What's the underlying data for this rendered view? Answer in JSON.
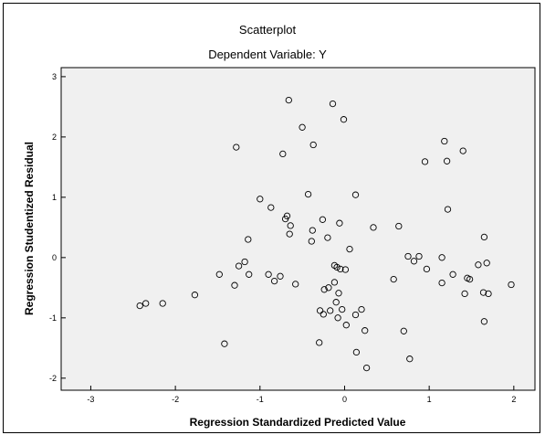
{
  "chart_data": {
    "type": "scatter",
    "title": "Scatterplot",
    "subtitle": "Dependent Variable: Y",
    "xlabel": "Regression Standardized Predicted Value",
    "ylabel": "Regression Studentized Residual",
    "xlim": [
      -3.35,
      2.25
    ],
    "ylim": [
      -2.2,
      3.15
    ],
    "xticks": [
      -3,
      -2,
      -1,
      0,
      1,
      2
    ],
    "yticks": [
      -2,
      -1,
      0,
      1,
      2,
      3
    ],
    "grid": false,
    "legend": "none",
    "colors": {
      "plot_background": "#f0f0f0",
      "marker_stroke": "#000000",
      "frame": "#000000"
    },
    "points": [
      [
        -2.42,
        -0.8
      ],
      [
        -2.35,
        -0.76
      ],
      [
        -2.15,
        -0.76
      ],
      [
        -1.77,
        -0.62
      ],
      [
        -1.48,
        -0.28
      ],
      [
        -1.42,
        -1.43
      ],
      [
        -1.28,
        1.83
      ],
      [
        -1.3,
        -0.46
      ],
      [
        -1.25,
        -0.14
      ],
      [
        -1.18,
        -0.07
      ],
      [
        -1.14,
        0.3
      ],
      [
        -1.13,
        -0.28
      ],
      [
        -1.0,
        0.97
      ],
      [
        -0.9,
        -0.28
      ],
      [
        -0.87,
        0.83
      ],
      [
        -0.83,
        -0.39
      ],
      [
        -0.76,
        -0.31
      ],
      [
        -0.73,
        1.72
      ],
      [
        -0.7,
        0.64
      ],
      [
        -0.68,
        0.69
      ],
      [
        -0.65,
        0.39
      ],
      [
        -0.64,
        0.53
      ],
      [
        -0.66,
        2.61
      ],
      [
        -0.58,
        -0.44
      ],
      [
        -0.5,
        2.16
      ],
      [
        -0.43,
        1.05
      ],
      [
        -0.39,
        0.27
      ],
      [
        -0.38,
        0.45
      ],
      [
        -0.37,
        1.87
      ],
      [
        -0.3,
        -1.41
      ],
      [
        -0.29,
        -0.88
      ],
      [
        -0.26,
        0.63
      ],
      [
        -0.25,
        -0.94
      ],
      [
        -0.24,
        -0.53
      ],
      [
        -0.2,
        0.33
      ],
      [
        -0.19,
        -0.5
      ],
      [
        -0.17,
        -0.88
      ],
      [
        -0.14,
        2.55
      ],
      [
        -0.12,
        -0.41
      ],
      [
        -0.12,
        -0.13
      ],
      [
        -0.1,
        -0.74
      ],
      [
        -0.09,
        -0.16
      ],
      [
        -0.08,
        -1.0
      ],
      [
        -0.07,
        -0.59
      ],
      [
        -0.06,
        0.57
      ],
      [
        -0.05,
        -0.19
      ],
      [
        -0.03,
        -0.86
      ],
      [
        -0.01,
        2.29
      ],
      [
        0.01,
        -0.2
      ],
      [
        0.02,
        -1.12
      ],
      [
        0.06,
        0.14
      ],
      [
        0.13,
        1.04
      ],
      [
        0.13,
        -0.95
      ],
      [
        0.14,
        -1.57
      ],
      [
        0.2,
        -0.86
      ],
      [
        0.24,
        -1.21
      ],
      [
        0.26,
        -1.83
      ],
      [
        0.34,
        0.5
      ],
      [
        0.58,
        -0.36
      ],
      [
        0.64,
        0.52
      ],
      [
        0.7,
        -1.22
      ],
      [
        0.75,
        0.02
      ],
      [
        0.77,
        -1.68
      ],
      [
        0.82,
        -0.06
      ],
      [
        0.88,
        0.02
      ],
      [
        0.95,
        1.59
      ],
      [
        0.97,
        -0.19
      ],
      [
        1.15,
        -0.42
      ],
      [
        1.15,
        0.0
      ],
      [
        1.18,
        1.93
      ],
      [
        1.21,
        1.6
      ],
      [
        1.22,
        0.8
      ],
      [
        1.28,
        -0.28
      ],
      [
        1.4,
        1.77
      ],
      [
        1.42,
        -0.6
      ],
      [
        1.45,
        -0.34
      ],
      [
        1.48,
        -0.36
      ],
      [
        1.58,
        -0.12
      ],
      [
        1.64,
        -0.58
      ],
      [
        1.65,
        -1.06
      ],
      [
        1.65,
        0.34
      ],
      [
        1.68,
        -0.09
      ],
      [
        1.7,
        -0.6
      ],
      [
        1.97,
        -0.45
      ]
    ]
  }
}
